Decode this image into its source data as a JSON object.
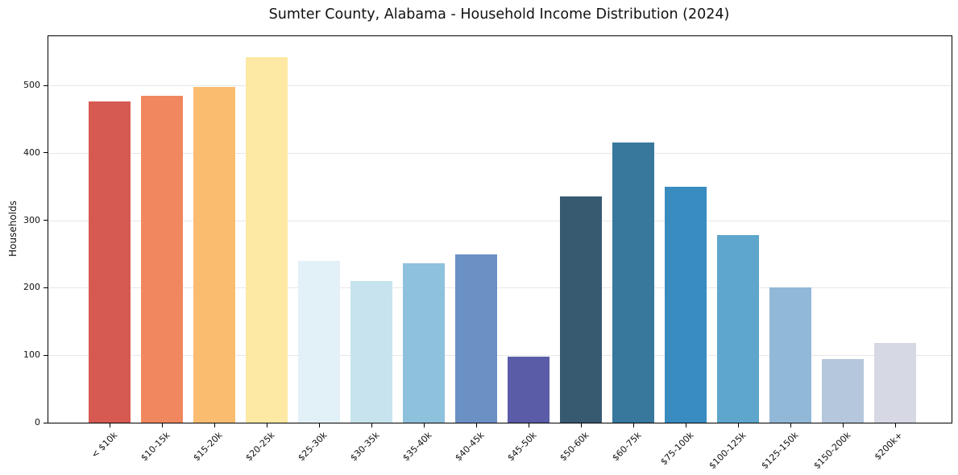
{
  "chart_data": {
    "type": "bar",
    "title": "Sumter County, Alabama - Household Income Distribution (2024)",
    "xlabel": "",
    "ylabel": "Households",
    "categories": [
      "< $10k",
      "$10-15k",
      "$15-20k",
      "$20-25k",
      "$25-30k",
      "$30-35k",
      "$35-40k",
      "$40-45k",
      "$45-50k",
      "$50-60k",
      "$60-75k",
      "$75-100k",
      "$100-125k",
      "$125-150k",
      "$150-200k",
      "$200k+"
    ],
    "values": [
      476,
      484,
      498,
      542,
      240,
      210,
      236,
      250,
      98,
      335,
      415,
      350,
      278,
      200,
      94,
      118
    ],
    "bar_colors": [
      "#d65a52",
      "#f0875f",
      "#fabd70",
      "#fde9a3",
      "#e2f1f7",
      "#c7e4ee",
      "#8ec1dc",
      "#6b91c4",
      "#5a5ca8",
      "#375a70",
      "#38789d",
      "#388cc0",
      "#5ea6cb",
      "#92b8d8",
      "#b5c7dc",
      "#d6d8e4"
    ],
    "yticks": [
      0,
      100,
      200,
      300,
      400,
      500
    ],
    "ylim": [
      0,
      573
    ],
    "grid": "horizontal-only",
    "grid_color": "#e7e7e7",
    "axis_color": "#000000",
    "background_color": "#ffffff",
    "legend": "none"
  }
}
